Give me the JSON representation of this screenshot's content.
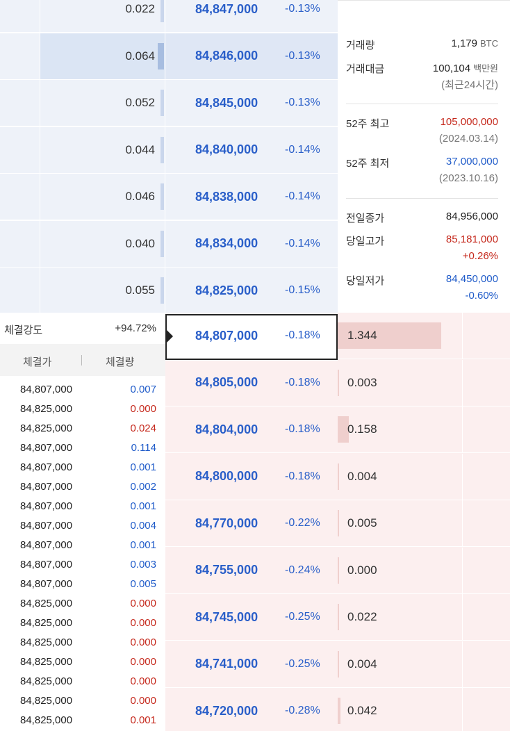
{
  "asks": [
    {
      "qty": "0.022",
      "price": "84,847,000",
      "change": "-0.13%",
      "bar": 0.03
    },
    {
      "qty": "0.064",
      "price": "84,846,000",
      "change": "-0.13%",
      "bar": 0.05,
      "highlight": true
    },
    {
      "qty": "0.052",
      "price": "84,845,000",
      "change": "-0.13%",
      "bar": 0.03
    },
    {
      "qty": "0.044",
      "price": "84,840,000",
      "change": "-0.14%",
      "bar": 0.03
    },
    {
      "qty": "0.046",
      "price": "84,838,000",
      "change": "-0.14%",
      "bar": 0.03
    },
    {
      "qty": "0.040",
      "price": "84,834,000",
      "change": "-0.14%",
      "bar": 0.03
    },
    {
      "qty": "0.055",
      "price": "84,825,000",
      "change": "-0.15%",
      "bar": 0.03
    }
  ],
  "bids": [
    {
      "qty": "1.344",
      "price": "84,807,000",
      "change": "-0.18%",
      "bar": 0.83,
      "current": true
    },
    {
      "qty": "0.003",
      "price": "84,805,000",
      "change": "-0.18%",
      "bar": 0.01
    },
    {
      "qty": "0.158",
      "price": "84,804,000",
      "change": "-0.18%",
      "bar": 0.09
    },
    {
      "qty": "0.004",
      "price": "84,800,000",
      "change": "-0.18%",
      "bar": 0.01
    },
    {
      "qty": "0.005",
      "price": "84,770,000",
      "change": "-0.22%",
      "bar": 0.01
    },
    {
      "qty": "0.000",
      "price": "84,755,000",
      "change": "-0.24%",
      "bar": 0.0
    },
    {
      "qty": "0.022",
      "price": "84,745,000",
      "change": "-0.25%",
      "bar": 0.01
    },
    {
      "qty": "0.004",
      "price": "84,741,000",
      "change": "-0.25%",
      "bar": 0.01
    },
    {
      "qty": "0.042",
      "price": "84,720,000",
      "change": "-0.28%",
      "bar": 0.02
    }
  ],
  "info": {
    "volume_label": "거래량",
    "volume_value": "1,179",
    "volume_unit": "BTC",
    "amount_label": "거래대금",
    "amount_value": "100,104",
    "amount_unit": "백만원",
    "amount_note": "(최근24시간)",
    "high52_label": "52주 최고",
    "high52_value": "105,000,000",
    "high52_date": "(2024.03.14)",
    "low52_label": "52주 최저",
    "low52_value": "37,000,000",
    "low52_date": "(2023.10.16)",
    "prev_close_label": "전일종가",
    "prev_close_value": "84,956,000",
    "day_high_label": "당일고가",
    "day_high_value": "85,181,000",
    "day_high_pct": "+0.26%",
    "day_low_label": "당일저가",
    "day_low_value": "84,450,000",
    "day_low_pct": "-0.60%"
  },
  "trades": {
    "strength_label": "체결강도",
    "strength_value": "+94.72%",
    "col_price": "체결가",
    "col_qty": "체결량",
    "colors": {
      "buy": "#c5281c",
      "sell": "#1f5bc9"
    },
    "rows": [
      {
        "price": "84,807,000",
        "qty": "0.007",
        "side": "sell"
      },
      {
        "price": "84,825,000",
        "qty": "0.000",
        "side": "buy"
      },
      {
        "price": "84,825,000",
        "qty": "0.024",
        "side": "buy"
      },
      {
        "price": "84,807,000",
        "qty": "0.114",
        "side": "sell"
      },
      {
        "price": "84,807,000",
        "qty": "0.001",
        "side": "sell"
      },
      {
        "price": "84,807,000",
        "qty": "0.002",
        "side": "sell"
      },
      {
        "price": "84,807,000",
        "qty": "0.001",
        "side": "sell"
      },
      {
        "price": "84,807,000",
        "qty": "0.004",
        "side": "sell"
      },
      {
        "price": "84,807,000",
        "qty": "0.001",
        "side": "sell"
      },
      {
        "price": "84,807,000",
        "qty": "0.003",
        "side": "sell"
      },
      {
        "price": "84,807,000",
        "qty": "0.005",
        "side": "sell"
      },
      {
        "price": "84,825,000",
        "qty": "0.000",
        "side": "buy"
      },
      {
        "price": "84,825,000",
        "qty": "0.000",
        "side": "buy"
      },
      {
        "price": "84,825,000",
        "qty": "0.000",
        "side": "buy"
      },
      {
        "price": "84,825,000",
        "qty": "0.000",
        "side": "buy"
      },
      {
        "price": "84,825,000",
        "qty": "0.000",
        "side": "buy"
      },
      {
        "price": "84,825,000",
        "qty": "0.000",
        "side": "buy"
      },
      {
        "price": "84,825,000",
        "qty": "0.001",
        "side": "buy"
      }
    ]
  }
}
